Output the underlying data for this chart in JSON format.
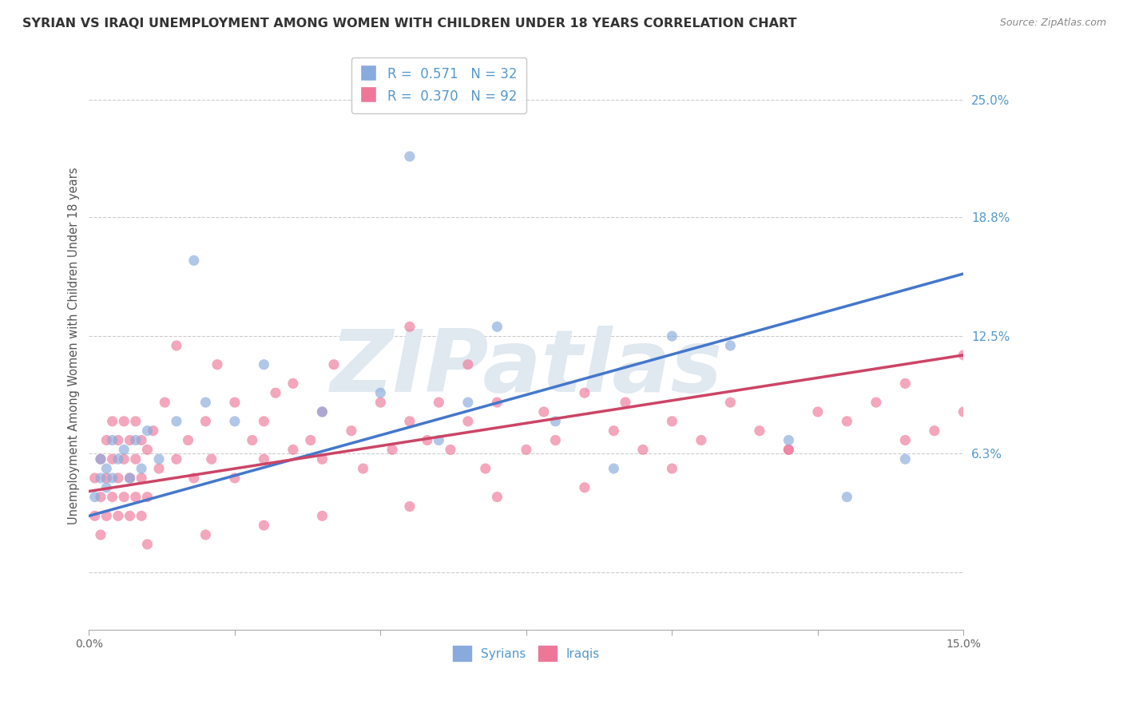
{
  "title": "SYRIAN VS IRAQI UNEMPLOYMENT AMONG WOMEN WITH CHILDREN UNDER 18 YEARS CORRELATION CHART",
  "source": "Source: ZipAtlas.com",
  "ylabel": "Unemployment Among Women with Children Under 18 years",
  "xlim": [
    0.0,
    0.15
  ],
  "ylim": [
    -0.03,
    0.27
  ],
  "yticks": [
    0.0,
    0.063,
    0.125,
    0.188,
    0.25
  ],
  "ytick_labels": [
    "",
    "6.3%",
    "12.5%",
    "18.8%",
    "25.0%"
  ],
  "xticks": [
    0.0,
    0.025,
    0.05,
    0.075,
    0.1,
    0.125,
    0.15
  ],
  "xtick_labels": [
    "0.0%",
    "",
    "",
    "",
    "",
    "",
    "15.0%"
  ],
  "legend_syrian_r_val": "0.571",
  "legend_syrian_n_val": "32",
  "legend_iraqi_r_val": "0.370",
  "legend_iraqi_n_val": "92",
  "color_syrian": "#88aadd",
  "color_iraqi": "#ee7799",
  "color_line_syrian": "#4477cc",
  "color_line_iraqi": "#cc4466",
  "color_grid": "#cccccc",
  "color_right_labels": "#5599cc",
  "color_title": "#333333",
  "color_source": "#888888",
  "color_watermark": "#e0e8f0",
  "watermark": "ZIPatlas",
  "syrian_line_x0": 0.0,
  "syrian_line_y0": 0.03,
  "syrian_line_x1": 0.15,
  "syrian_line_y1": 0.158,
  "iraqi_line_x0": 0.0,
  "iraqi_line_y0": 0.043,
  "iraqi_line_x1": 0.15,
  "iraqi_line_y1": 0.115,
  "syrian_points_x": [
    0.001,
    0.002,
    0.002,
    0.003,
    0.003,
    0.004,
    0.004,
    0.005,
    0.006,
    0.007,
    0.008,
    0.009,
    0.01,
    0.012,
    0.015,
    0.018,
    0.02,
    0.025,
    0.03,
    0.04,
    0.05,
    0.055,
    0.06,
    0.065,
    0.07,
    0.08,
    0.09,
    0.1,
    0.11,
    0.12,
    0.13,
    0.14
  ],
  "syrian_points_y": [
    0.04,
    0.05,
    0.06,
    0.055,
    0.045,
    0.07,
    0.05,
    0.06,
    0.065,
    0.05,
    0.07,
    0.055,
    0.075,
    0.06,
    0.08,
    0.165,
    0.09,
    0.08,
    0.11,
    0.085,
    0.095,
    0.22,
    0.07,
    0.09,
    0.13,
    0.08,
    0.055,
    0.125,
    0.12,
    0.07,
    0.04,
    0.06
  ],
  "iraqi_points_x": [
    0.001,
    0.001,
    0.002,
    0.002,
    0.002,
    0.003,
    0.003,
    0.003,
    0.004,
    0.004,
    0.004,
    0.005,
    0.005,
    0.005,
    0.006,
    0.006,
    0.006,
    0.007,
    0.007,
    0.007,
    0.008,
    0.008,
    0.008,
    0.009,
    0.009,
    0.009,
    0.01,
    0.01,
    0.011,
    0.012,
    0.013,
    0.015,
    0.015,
    0.017,
    0.018,
    0.02,
    0.021,
    0.022,
    0.025,
    0.025,
    0.028,
    0.03,
    0.03,
    0.032,
    0.035,
    0.035,
    0.038,
    0.04,
    0.04,
    0.042,
    0.045,
    0.047,
    0.05,
    0.052,
    0.055,
    0.055,
    0.058,
    0.06,
    0.062,
    0.065,
    0.065,
    0.068,
    0.07,
    0.075,
    0.078,
    0.08,
    0.085,
    0.09,
    0.092,
    0.095,
    0.1,
    0.105,
    0.11,
    0.115,
    0.12,
    0.125,
    0.13,
    0.135,
    0.14,
    0.145,
    0.15,
    0.15,
    0.14,
    0.12,
    0.1,
    0.085,
    0.07,
    0.055,
    0.04,
    0.03,
    0.02,
    0.01
  ],
  "iraqi_points_y": [
    0.05,
    0.03,
    0.06,
    0.04,
    0.02,
    0.05,
    0.07,
    0.03,
    0.06,
    0.04,
    0.08,
    0.05,
    0.07,
    0.03,
    0.06,
    0.04,
    0.08,
    0.05,
    0.07,
    0.03,
    0.06,
    0.08,
    0.04,
    0.05,
    0.07,
    0.03,
    0.065,
    0.04,
    0.075,
    0.055,
    0.09,
    0.06,
    0.12,
    0.07,
    0.05,
    0.08,
    0.06,
    0.11,
    0.09,
    0.05,
    0.07,
    0.08,
    0.06,
    0.095,
    0.065,
    0.1,
    0.07,
    0.085,
    0.06,
    0.11,
    0.075,
    0.055,
    0.09,
    0.065,
    0.08,
    0.13,
    0.07,
    0.09,
    0.065,
    0.08,
    0.11,
    0.055,
    0.09,
    0.065,
    0.085,
    0.07,
    0.095,
    0.075,
    0.09,
    0.065,
    0.08,
    0.07,
    0.09,
    0.075,
    0.065,
    0.085,
    0.08,
    0.09,
    0.1,
    0.075,
    0.115,
    0.085,
    0.07,
    0.065,
    0.055,
    0.045,
    0.04,
    0.035,
    0.03,
    0.025,
    0.02,
    0.015
  ]
}
